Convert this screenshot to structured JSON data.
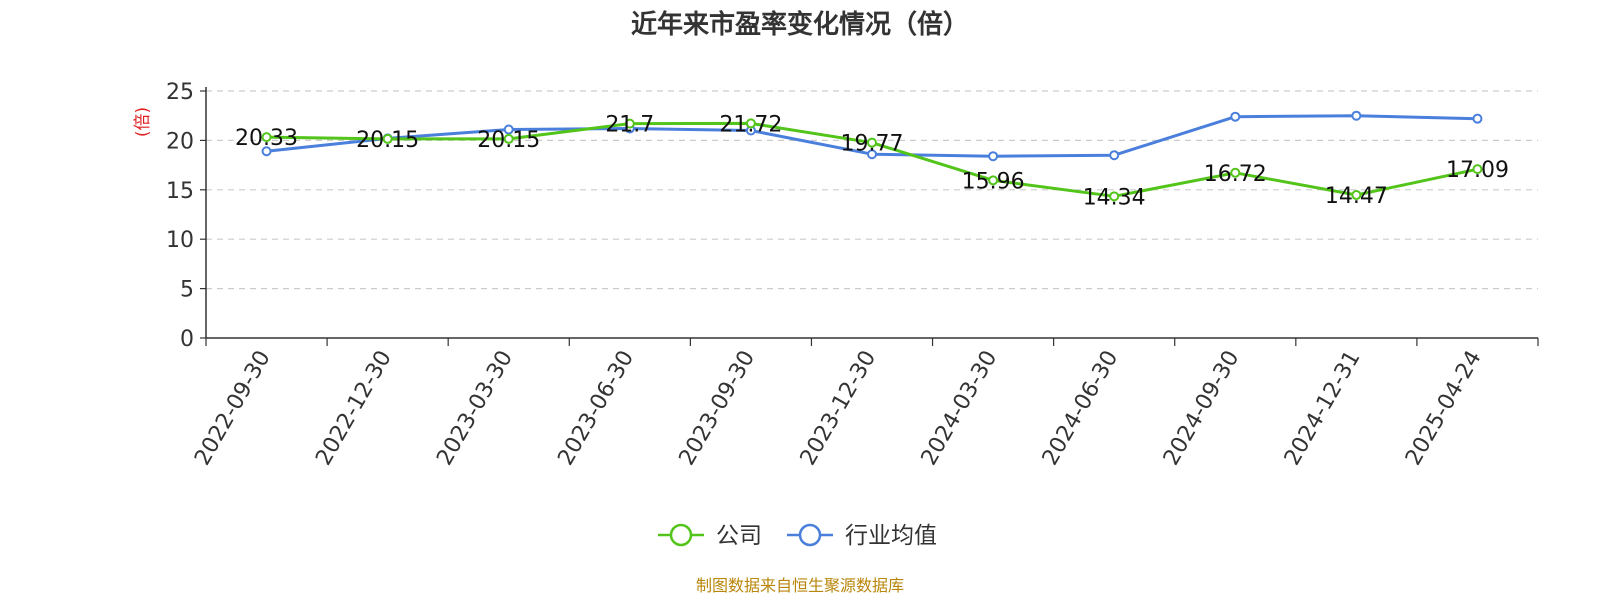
{
  "chart_data": {
    "type": "line",
    "title": "近年来市盈率变化情况（倍）",
    "ylabel": "(倍)",
    "xlabel": "",
    "categories": [
      "2022-09-30",
      "2022-12-30",
      "2023-03-30",
      "2023-06-30",
      "2023-09-30",
      "2023-12-30",
      "2024-03-30",
      "2024-06-30",
      "2024-09-30",
      "2024-12-31",
      "2025-04-24"
    ],
    "ylim": [
      0,
      25
    ],
    "yticks": [
      "0",
      "5",
      "10",
      "15",
      "20",
      "25"
    ],
    "grid": "horizontal-dashed",
    "legend_position": "bottom",
    "series": [
      {
        "name": "公司",
        "color": "#52c41a",
        "values": [
          20.33,
          20.15,
          20.15,
          21.7,
          21.72,
          19.77,
          15.96,
          14.34,
          16.72,
          14.47,
          17.09
        ],
        "labels": [
          "20.33",
          "20.15",
          "20.15",
          "21.7",
          "21.72",
          "19.77",
          "15.96",
          "14.34",
          "16.72",
          "14.47",
          "17.09"
        ]
      },
      {
        "name": "行业均值",
        "color": "#4a7fdc",
        "values": [
          18.9,
          20.2,
          21.1,
          21.2,
          21.0,
          18.6,
          18.4,
          18.5,
          22.4,
          22.5,
          22.2
        ]
      }
    ]
  },
  "ylabel_color": "#e02020",
  "source": "制图数据来自恒生聚源数据库",
  "source_color": "#b8860b"
}
